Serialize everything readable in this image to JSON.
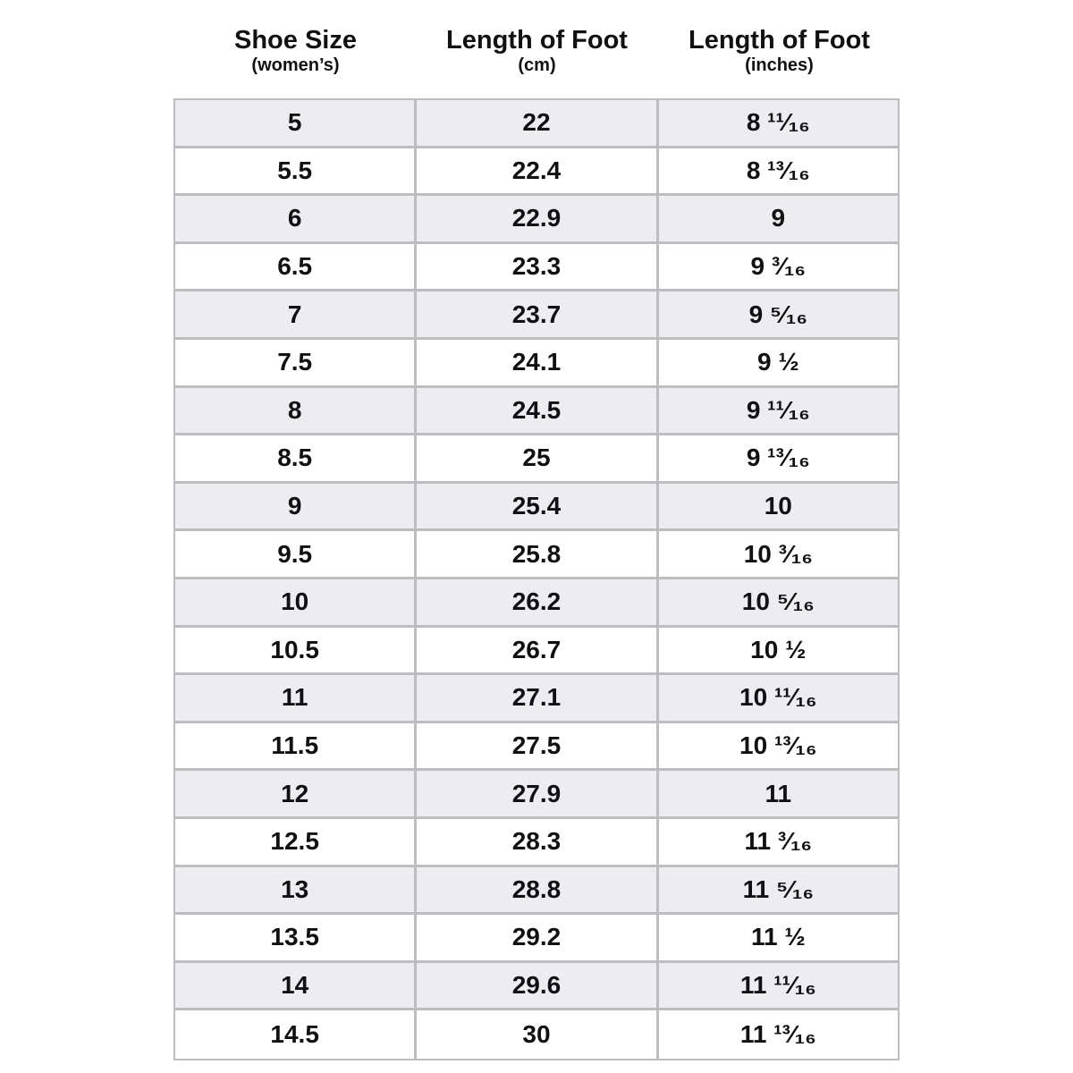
{
  "headers": [
    {
      "title": "Shoe Size",
      "sub": "(women’s)"
    },
    {
      "title": "Length of Foot",
      "sub": "(cm)"
    },
    {
      "title": "Length of Foot",
      "sub": "(inches)"
    }
  ],
  "rows": [
    [
      "5",
      "22",
      "8 ¹¹⁄₁₆"
    ],
    [
      "5.5",
      "22.4",
      "8 ¹³⁄₁₆"
    ],
    [
      "6",
      "22.9",
      "9"
    ],
    [
      "6.5",
      "23.3",
      "9 ³⁄₁₆"
    ],
    [
      "7",
      "23.7",
      "9 ⁵⁄₁₆"
    ],
    [
      "7.5",
      "24.1",
      "9 ½"
    ],
    [
      "8",
      "24.5",
      "9 ¹¹⁄₁₆"
    ],
    [
      "8.5",
      "25",
      "9 ¹³⁄₁₆"
    ],
    [
      "9",
      "25.4",
      "10"
    ],
    [
      "9.5",
      "25.8",
      "10 ³⁄₁₆"
    ],
    [
      "10",
      "26.2",
      "10 ⁵⁄₁₆"
    ],
    [
      "10.5",
      "26.7",
      "10 ½"
    ],
    [
      "11",
      "27.1",
      "10 ¹¹⁄₁₆"
    ],
    [
      "11.5",
      "27.5",
      "10 ¹³⁄₁₆"
    ],
    [
      "12",
      "27.9",
      "11"
    ],
    [
      "12.5",
      "28.3",
      "11 ³⁄₁₆"
    ],
    [
      "13",
      "28.8",
      "11 ⁵⁄₁₆"
    ],
    [
      "13.5",
      "29.2",
      "11 ½"
    ],
    [
      "14",
      "29.6",
      "11 ¹¹⁄₁₆"
    ],
    [
      "14.5",
      "30",
      "11 ¹³⁄₁₆"
    ]
  ],
  "colors": {
    "shaded_row": "#ededf1",
    "border": "#bdbdc0"
  }
}
